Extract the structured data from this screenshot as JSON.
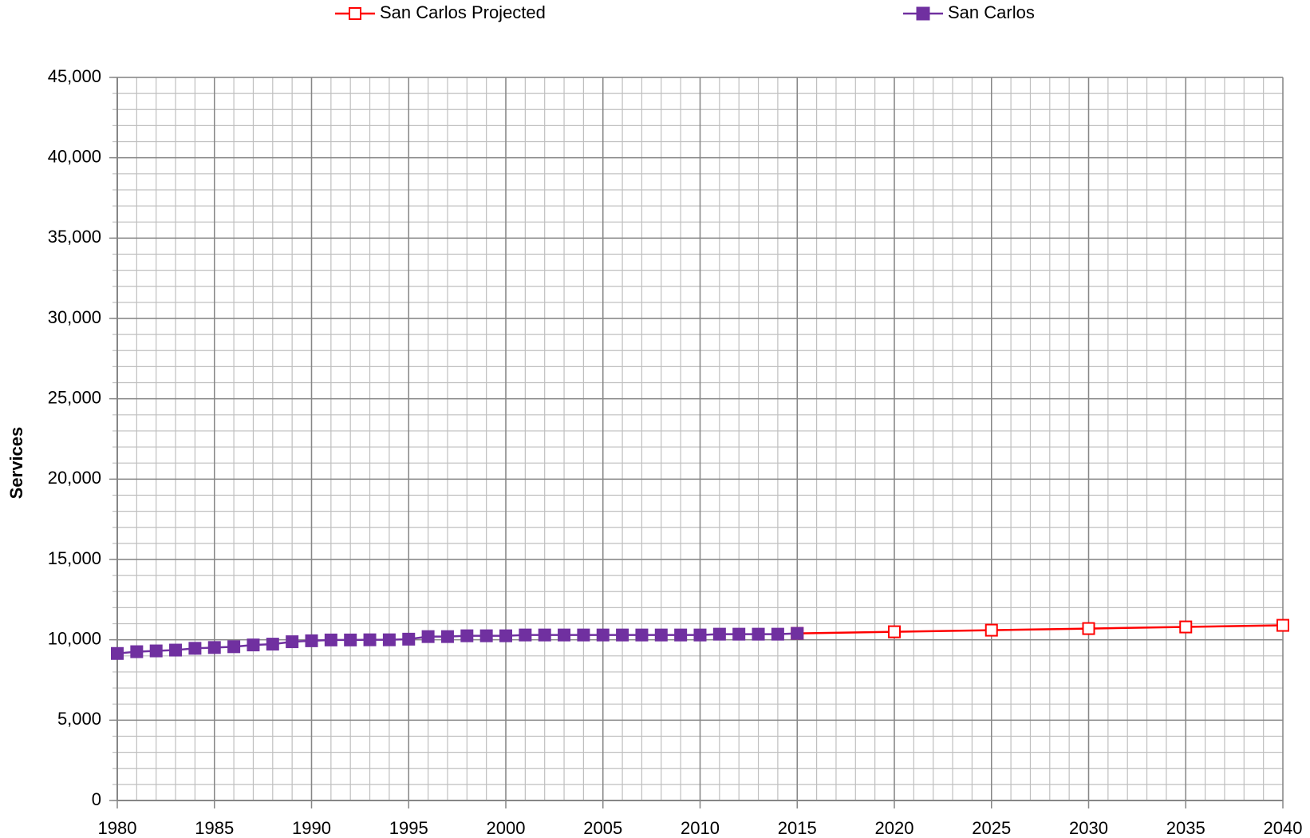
{
  "chart_data": {
    "type": "line",
    "y_label": "Services",
    "xlim": [
      1980,
      2040
    ],
    "xticks": [
      1980,
      1985,
      1990,
      1995,
      2000,
      2005,
      2010,
      2015,
      2020,
      2025,
      2030,
      2035,
      2040
    ],
    "ylim": [
      0,
      45000
    ],
    "yticks": [
      0,
      {
        "value": 5000,
        "label": "5,000"
      },
      {
        "value": 10000,
        "label": "10,000"
      },
      {
        "value": 15000,
        "label": "15,000"
      },
      {
        "value": 20000,
        "label": "20,000"
      },
      {
        "value": 25000,
        "label": "25,000"
      },
      {
        "value": 30000,
        "label": "30,000"
      },
      {
        "value": 35000,
        "label": "35,000"
      },
      {
        "value": 40000,
        "label": "40,000"
      },
      {
        "value": 45000,
        "label": "45,000"
      }
    ],
    "grid": true,
    "minor_grid": {
      "x": 1,
      "y": 1000
    },
    "legend": "top",
    "series": [
      {
        "name": "San Carlos Projected",
        "color": "#ff0000",
        "marker": "open-square",
        "x": [
          2015,
          2020,
          2025,
          2030,
          2035,
          2040
        ],
        "values": [
          10400,
          10500,
          10600,
          10700,
          10800,
          10900
        ]
      },
      {
        "name": "San Carlos",
        "color": "#7030a0",
        "marker": "filled-square",
        "x": [
          1980,
          1981,
          1982,
          1983,
          1984,
          1985,
          1986,
          1987,
          1988,
          1989,
          1990,
          1991,
          1992,
          1993,
          1994,
          1995,
          1996,
          1997,
          1998,
          1999,
          2000,
          2001,
          2002,
          2003,
          2004,
          2005,
          2006,
          2007,
          2008,
          2009,
          2010,
          2011,
          2012,
          2013,
          2014,
          2015
        ],
        "values": [
          9150,
          9260,
          9310,
          9360,
          9470,
          9520,
          9570,
          9680,
          9730,
          9880,
          9940,
          9990,
          9990,
          10000,
          10000,
          10040,
          10200,
          10200,
          10250,
          10250,
          10250,
          10300,
          10300,
          10300,
          10300,
          10300,
          10300,
          10300,
          10300,
          10300,
          10300,
          10350,
          10350,
          10350,
          10350,
          10400
        ]
      }
    ]
  }
}
